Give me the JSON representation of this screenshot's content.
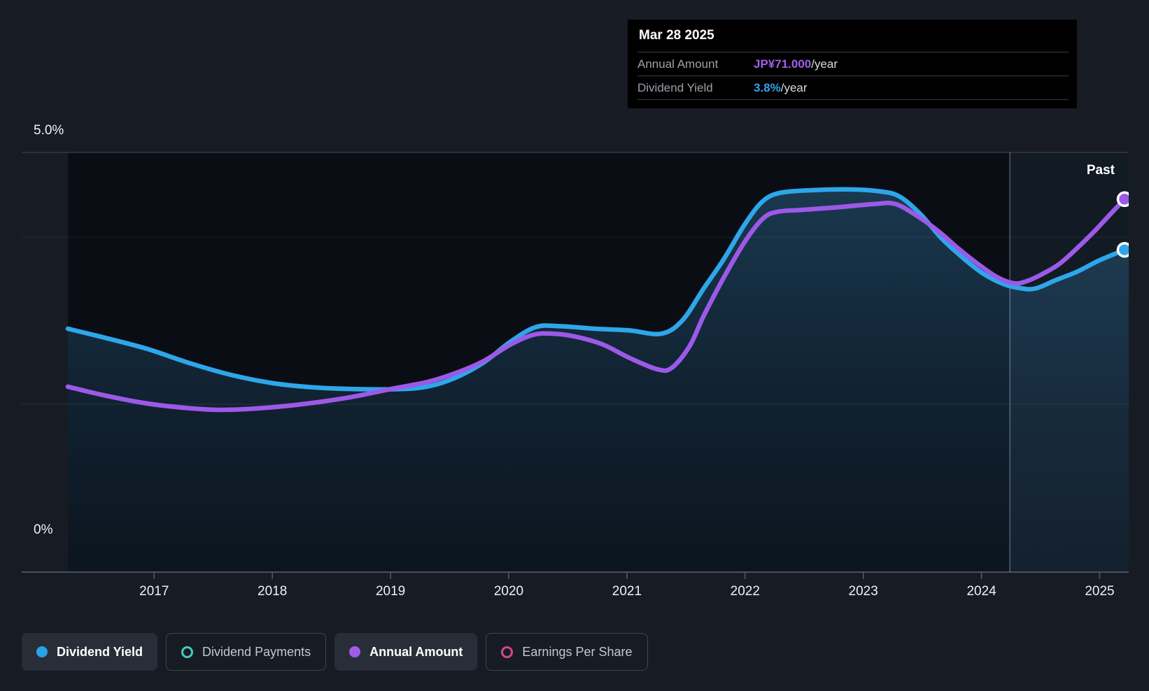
{
  "tooltip": {
    "date": "Mar 28 2025",
    "rows": [
      {
        "label": "Annual Amount",
        "value": "JP¥71.000",
        "suffix": "/year",
        "value_color": "#a25fe8"
      },
      {
        "label": "Dividend Yield",
        "value": "3.8%",
        "suffix": "/year",
        "value_color": "#31a3ef"
      }
    ]
  },
  "axis": {
    "y_top_label": "5.0%",
    "y_bottom_label": "0%",
    "x_labels": [
      "2017",
      "2018",
      "2019",
      "2020",
      "2021",
      "2022",
      "2023",
      "2024",
      "2025"
    ]
  },
  "past_label": "Past",
  "legend": [
    {
      "label": "Dividend Yield",
      "swatch": "filled-dot",
      "color": "#2ba2e8",
      "active": true
    },
    {
      "label": "Dividend Payments",
      "swatch": "open-circle",
      "color": "#49c9c0",
      "active": false
    },
    {
      "label": "Annual Amount",
      "swatch": "filled-dot",
      "color": "#a05ce8",
      "active": true
    },
    {
      "label": "Earnings Per Share",
      "swatch": "open-circle",
      "color": "#d4478f",
      "active": false
    }
  ],
  "colors": {
    "page_bg": "#171c24",
    "plot_bg": "#0a0e14",
    "dividend_yield_line": "#2ea6ea",
    "annual_amount_line": "#9c59e8",
    "tooltip_bg": "#000000",
    "grid_strong": "#394049",
    "grid_axis": "#4a505a",
    "grid_faint": "rgba(255,255,255,0.07)",
    "past_band": "rgba(130,180,235,0.07)",
    "past_divider": "rgba(190,210,235,0.30)"
  },
  "chart_data": {
    "type": "line",
    "title": "Dividend yield and annual amount history",
    "x_range": [
      2016.27,
      2025.21
    ],
    "past_divider_x": 2024.24,
    "gridlines_pct": [
      5.0,
      3.99,
      2.0,
      0.0
    ],
    "legend_position": "bottom",
    "series": [
      {
        "name": "Dividend Yield",
        "unit": "%",
        "range": [
          0,
          5
        ],
        "fill": true,
        "end_dot": true,
        "points": [
          [
            2016.27,
            2.9
          ],
          [
            2016.59,
            2.79
          ],
          [
            2016.94,
            2.66
          ],
          [
            2017.3,
            2.49
          ],
          [
            2017.65,
            2.35
          ],
          [
            2018.01,
            2.25
          ],
          [
            2018.36,
            2.2
          ],
          [
            2018.72,
            2.18
          ],
          [
            2019.07,
            2.18
          ],
          [
            2019.31,
            2.21
          ],
          [
            2019.54,
            2.31
          ],
          [
            2019.78,
            2.49
          ],
          [
            2020.02,
            2.75
          ],
          [
            2020.23,
            2.92
          ],
          [
            2020.43,
            2.93
          ],
          [
            2020.73,
            2.9
          ],
          [
            2021.02,
            2.88
          ],
          [
            2021.29,
            2.84
          ],
          [
            2021.47,
            3.0
          ],
          [
            2021.65,
            3.38
          ],
          [
            2021.82,
            3.73
          ],
          [
            2022.0,
            4.15
          ],
          [
            2022.15,
            4.42
          ],
          [
            2022.3,
            4.52
          ],
          [
            2022.56,
            4.55
          ],
          [
            2022.86,
            4.56
          ],
          [
            2023.12,
            4.54
          ],
          [
            2023.3,
            4.48
          ],
          [
            2023.48,
            4.27
          ],
          [
            2023.66,
            3.98
          ],
          [
            2023.83,
            3.76
          ],
          [
            2024.01,
            3.56
          ],
          [
            2024.19,
            3.43
          ],
          [
            2024.34,
            3.38
          ],
          [
            2024.46,
            3.38
          ],
          [
            2024.63,
            3.48
          ],
          [
            2024.81,
            3.58
          ],
          [
            2024.99,
            3.71
          ],
          [
            2025.21,
            3.84
          ]
        ]
      },
      {
        "name": "Annual Amount",
        "unit": "JP¥/year",
        "range": [
          0,
          79.9
        ],
        "fill": false,
        "end_dot": true,
        "points": [
          [
            2016.27,
            35.3
          ],
          [
            2016.59,
            33.6
          ],
          [
            2016.94,
            32.1
          ],
          [
            2017.3,
            31.2
          ],
          [
            2017.59,
            30.9
          ],
          [
            2017.95,
            31.3
          ],
          [
            2018.3,
            32.1
          ],
          [
            2018.66,
            33.3
          ],
          [
            2019.01,
            34.9
          ],
          [
            2019.31,
            36.2
          ],
          [
            2019.54,
            37.8
          ],
          [
            2019.78,
            40.1
          ],
          [
            2020.02,
            43.4
          ],
          [
            2020.21,
            45.2
          ],
          [
            2020.37,
            45.4
          ],
          [
            2020.55,
            44.9
          ],
          [
            2020.79,
            43.4
          ],
          [
            2021.02,
            40.8
          ],
          [
            2021.26,
            38.6
          ],
          [
            2021.38,
            38.9
          ],
          [
            2021.53,
            43.0
          ],
          [
            2021.65,
            48.8
          ],
          [
            2021.82,
            56.1
          ],
          [
            2022.0,
            63.0
          ],
          [
            2022.15,
            67.3
          ],
          [
            2022.27,
            68.6
          ],
          [
            2022.5,
            69.0
          ],
          [
            2022.8,
            69.5
          ],
          [
            2023.1,
            70.1
          ],
          [
            2023.27,
            70.1
          ],
          [
            2023.45,
            67.9
          ],
          [
            2023.63,
            65.0
          ],
          [
            2023.8,
            61.7
          ],
          [
            2023.98,
            58.5
          ],
          [
            2024.13,
            56.2
          ],
          [
            2024.27,
            55.0
          ],
          [
            2024.37,
            55.3
          ],
          [
            2024.51,
            56.7
          ],
          [
            2024.66,
            58.7
          ],
          [
            2024.81,
            61.7
          ],
          [
            2024.96,
            65.0
          ],
          [
            2025.08,
            67.9
          ],
          [
            2025.21,
            71.0
          ]
        ]
      }
    ]
  }
}
